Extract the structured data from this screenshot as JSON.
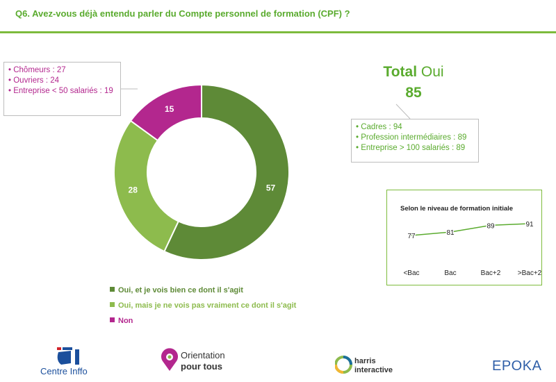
{
  "header": {
    "question": "Q6. Avez-vous déjà entendu parler du Compte personnel de formation (CPF) ?"
  },
  "total": {
    "word_total": "Total",
    "word_oui": "Oui",
    "value": "85"
  },
  "callout_left": {
    "items": [
      "Chômeurs : 27",
      "Ouvriers : 24",
      "Entreprise < 50 salariés : 19"
    ]
  },
  "callout_right": {
    "items": [
      "Cadres : 94",
      "Profession intermédiaires : 89",
      "Entreprise > 100 salariés : 89"
    ]
  },
  "colors": {
    "dark_green": "#5e8a37",
    "light_green": "#8dbb4d",
    "magenta": "#b3278e",
    "accent_green": "#5aab2e"
  },
  "chart_data": [
    {
      "type": "pie",
      "donut": true,
      "title": "",
      "categories": [
        "Oui, et je vois bien ce dont il s'agit",
        "Oui, mais je ne vois pas vraiment ce dont il s'agit",
        "Non"
      ],
      "values": [
        57,
        28,
        15
      ],
      "legend_position": "bottom-left"
    },
    {
      "type": "line",
      "title": "Selon le niveau de formation initiale",
      "categories": [
        "<Bac",
        "Bac",
        "Bac+2",
        ">Bac+2"
      ],
      "values": [
        77,
        81,
        89,
        91
      ],
      "xlabel": "",
      "ylabel": "",
      "grid": false
    }
  ],
  "logos": {
    "centreinffo": "Centre Inffo",
    "orientation_line1": "Orientation",
    "orientation_line2": "pour tous",
    "harris_line1": "harris",
    "harris_line2": "interactive",
    "epoka": "EPOKA"
  }
}
